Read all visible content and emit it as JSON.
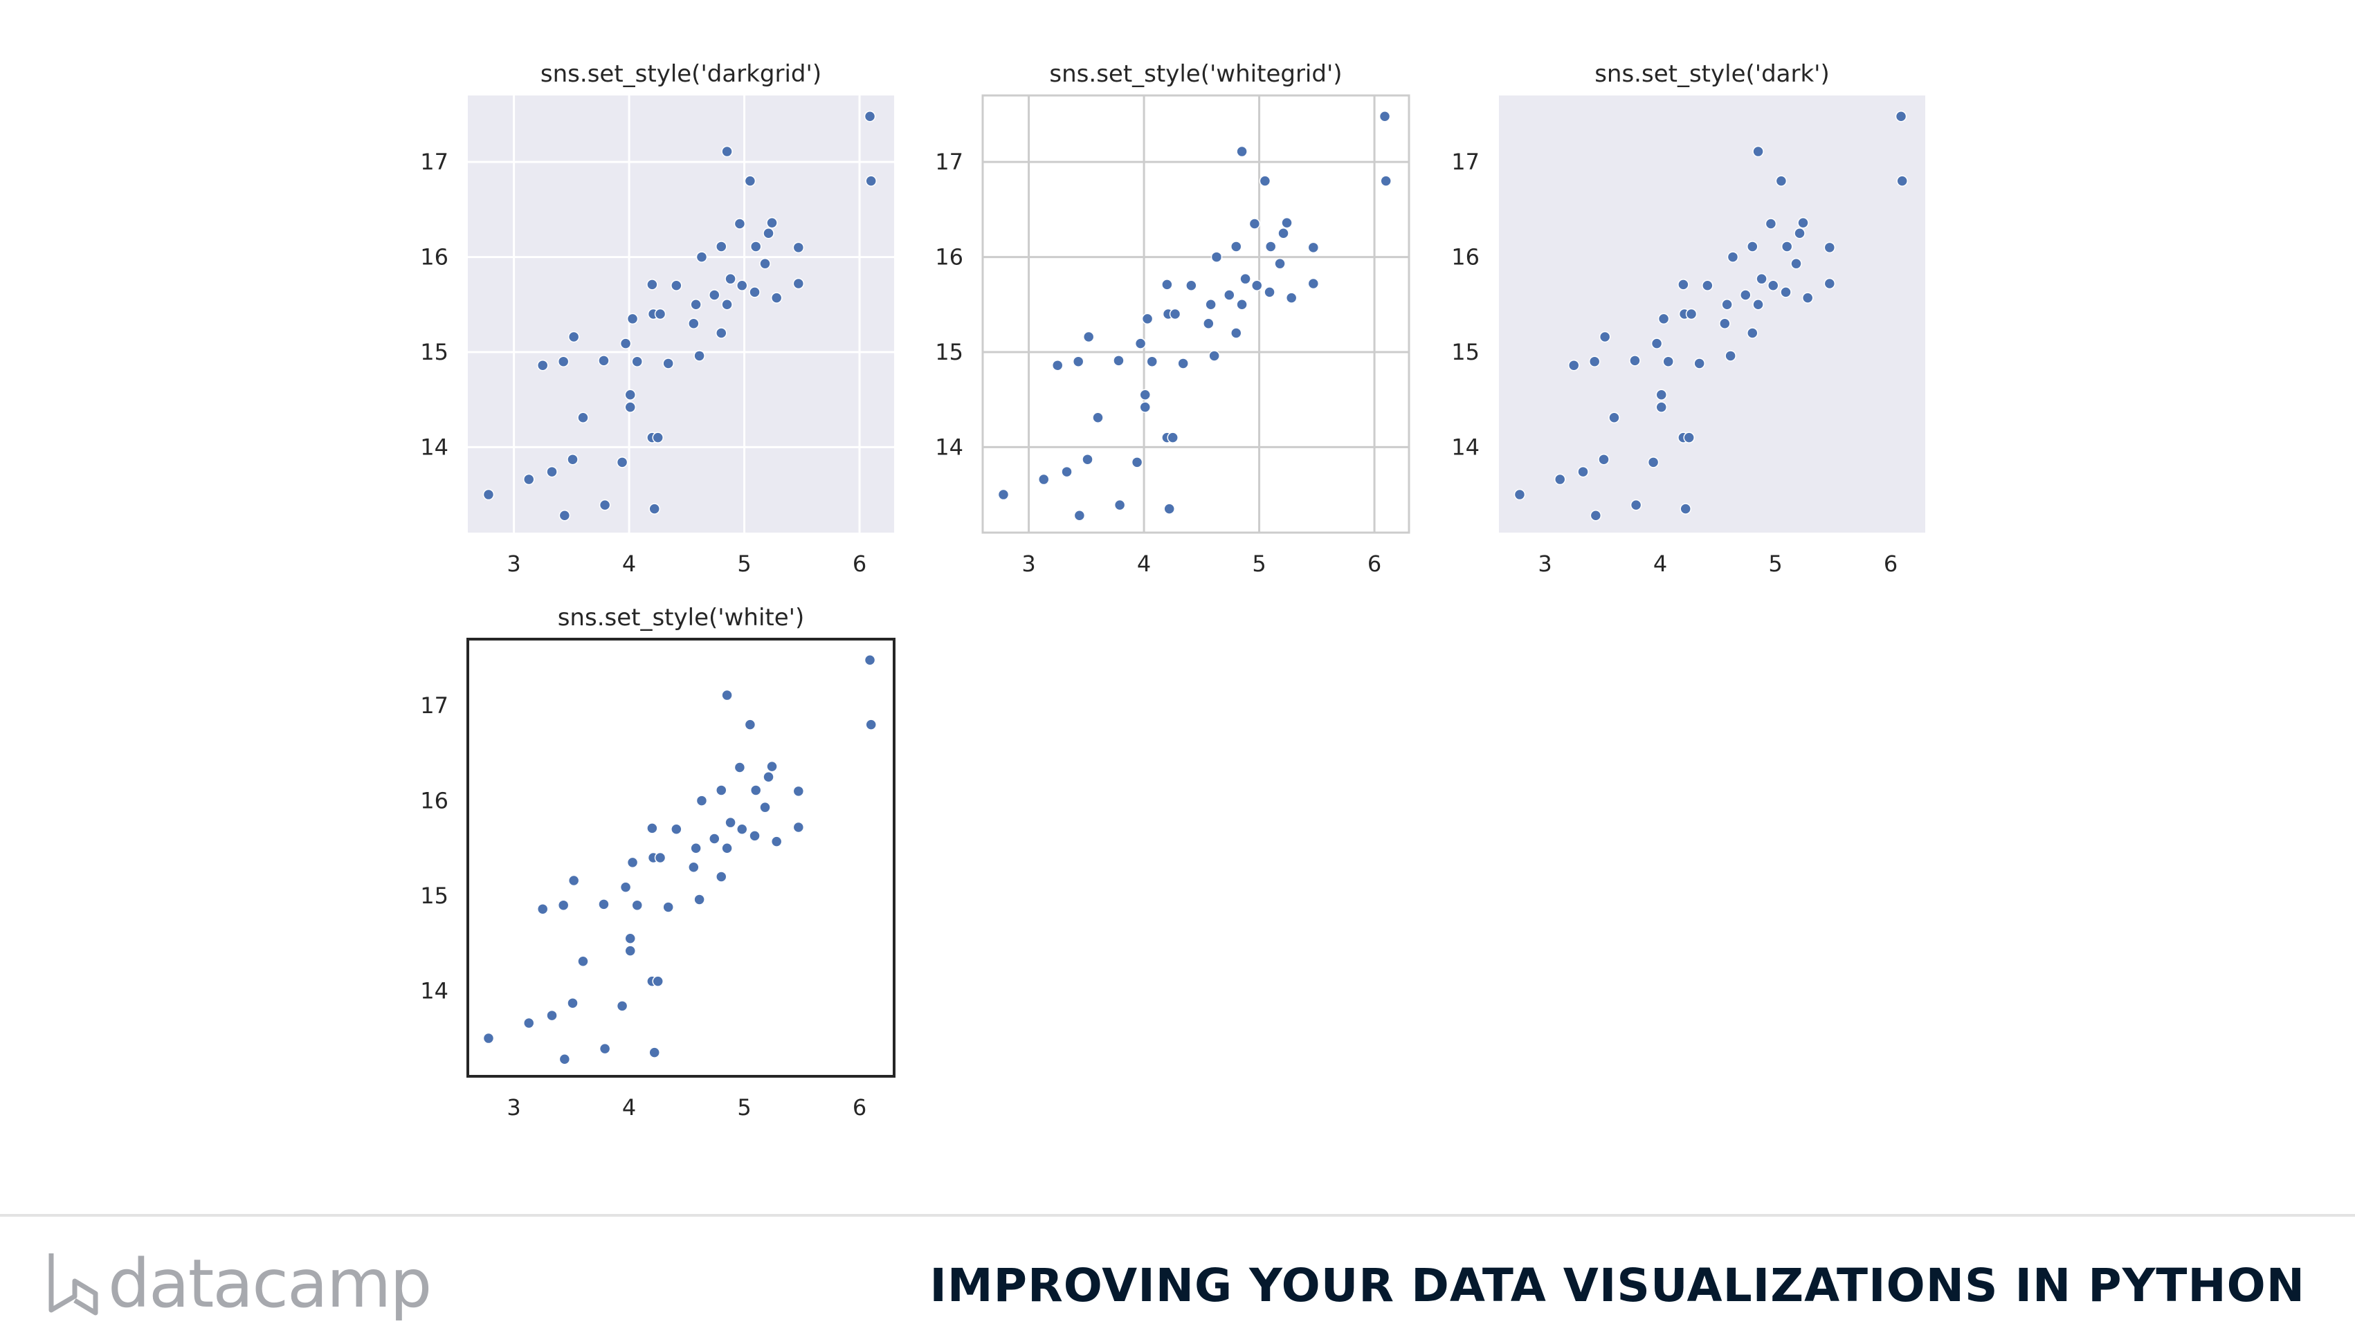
{
  "chart_data": [
    {
      "type": "scatter",
      "title": "sns.set_style('darkgrid')",
      "style": "darkgrid",
      "background": "#eaeaf2",
      "grid": true,
      "grid_color": "#ffffff",
      "frame": false,
      "xlim": [
        2.6,
        6.3
      ],
      "ylim": [
        13.1,
        17.7
      ],
      "xticks": [
        "3",
        "4",
        "5",
        "6"
      ],
      "yticks": [
        "14",
        "15",
        "16",
        "17"
      ],
      "marker_color": "#4c72b0"
    },
    {
      "type": "scatter",
      "title": "sns.set_style('whitegrid')",
      "style": "whitegrid",
      "background": "#ffffff",
      "grid": true,
      "grid_color": "#cccccc",
      "frame": true,
      "frame_color": "#cccccc",
      "xlim": [
        2.6,
        6.3
      ],
      "ylim": [
        13.1,
        17.7
      ],
      "xticks": [
        "3",
        "4",
        "5",
        "6"
      ],
      "yticks": [
        "14",
        "15",
        "16",
        "17"
      ],
      "marker_color": "#4c72b0"
    },
    {
      "type": "scatter",
      "title": "sns.set_style('dark')",
      "style": "dark",
      "background": "#eaeaf2",
      "grid": false,
      "frame": false,
      "xlim": [
        2.6,
        6.3
      ],
      "ylim": [
        13.1,
        17.7
      ],
      "xticks": [
        "3",
        "4",
        "5",
        "6"
      ],
      "yticks": [
        "14",
        "15",
        "16",
        "17"
      ],
      "marker_color": "#4c72b0"
    },
    {
      "type": "scatter",
      "title": "sns.set_style('white')",
      "style": "white",
      "background": "#ffffff",
      "grid": false,
      "frame": true,
      "frame_color": "#262626",
      "xlim": [
        2.6,
        6.3
      ],
      "ylim": [
        13.1,
        17.7
      ],
      "xticks": [
        "3",
        "4",
        "5",
        "6"
      ],
      "yticks": [
        "14",
        "15",
        "16",
        "17"
      ],
      "marker_color": "#4c72b0"
    }
  ],
  "points": [
    [
      2.78,
      13.5
    ],
    [
      3.13,
      13.66
    ],
    [
      3.25,
      14.86
    ],
    [
      3.33,
      13.74
    ],
    [
      3.43,
      14.9
    ],
    [
      3.44,
      13.28
    ],
    [
      3.51,
      13.87
    ],
    [
      3.52,
      15.16
    ],
    [
      3.6,
      14.31
    ],
    [
      3.78,
      14.91
    ],
    [
      3.79,
      13.39
    ],
    [
      3.94,
      13.84
    ],
    [
      3.97,
      15.09
    ],
    [
      4.01,
      14.55
    ],
    [
      4.01,
      14.42
    ],
    [
      4.03,
      15.35
    ],
    [
      4.07,
      14.9
    ],
    [
      4.2,
      15.71
    ],
    [
      4.2,
      14.1
    ],
    [
      4.21,
      15.4
    ],
    [
      4.22,
      13.35
    ],
    [
      4.25,
      14.1
    ],
    [
      4.27,
      15.4
    ],
    [
      4.34,
      14.88
    ],
    [
      4.41,
      15.7
    ],
    [
      4.56,
      15.3
    ],
    [
      4.58,
      15.5
    ],
    [
      4.61,
      14.96
    ],
    [
      4.63,
      16.0
    ],
    [
      4.74,
      15.6
    ],
    [
      4.8,
      16.11
    ],
    [
      4.8,
      15.2
    ],
    [
      4.85,
      17.11
    ],
    [
      4.85,
      15.5
    ],
    [
      4.88,
      15.77
    ],
    [
      4.96,
      16.35
    ],
    [
      4.98,
      15.7
    ],
    [
      5.05,
      16.8
    ],
    [
      5.09,
      15.63
    ],
    [
      5.1,
      16.11
    ],
    [
      5.18,
      15.93
    ],
    [
      5.21,
      16.25
    ],
    [
      5.24,
      16.36
    ],
    [
      5.28,
      15.57
    ],
    [
      5.47,
      16.1
    ],
    [
      5.47,
      15.72
    ],
    [
      6.09,
      17.48
    ],
    [
      6.1,
      16.8
    ]
  ],
  "footer": {
    "brand": "datacamp",
    "course_title": "IMPROVING YOUR DATA VISUALIZATIONS IN PYTHON"
  }
}
